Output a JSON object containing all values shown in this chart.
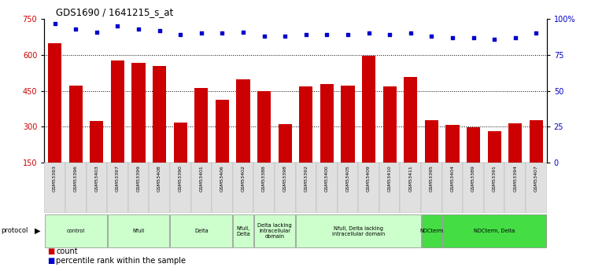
{
  "title": "GDS1690 / 1641215_s_at",
  "samples": [
    "GSM53393",
    "GSM53396",
    "GSM53403",
    "GSM53397",
    "GSM53399",
    "GSM53408",
    "GSM53390",
    "GSM53401",
    "GSM53406",
    "GSM53402",
    "GSM53388",
    "GSM53398",
    "GSM53392",
    "GSM53400",
    "GSM53405",
    "GSM53409",
    "GSM53410",
    "GSM53411",
    "GSM53395",
    "GSM53404",
    "GSM53389",
    "GSM53391",
    "GSM53394",
    "GSM53407"
  ],
  "counts": [
    648,
    472,
    323,
    578,
    567,
    552,
    318,
    462,
    413,
    498,
    448,
    312,
    468,
    478,
    472,
    597,
    467,
    508,
    328,
    308,
    298,
    282,
    313,
    328
  ],
  "percentiles": [
    97,
    93,
    91,
    95,
    93,
    92,
    89,
    90,
    90,
    91,
    88,
    88,
    89,
    89,
    89,
    90,
    89,
    90,
    88,
    87,
    87,
    86,
    87,
    90
  ],
  "bar_color": "#cc0000",
  "dot_color": "#0000cc",
  "ylim_left": [
    150,
    750
  ],
  "ylim_right": [
    0,
    100
  ],
  "yticks_left": [
    150,
    300,
    450,
    600,
    750
  ],
  "yticks_right": [
    0,
    25,
    50,
    75,
    100
  ],
  "grid_lines": [
    300,
    450,
    600
  ],
  "protocol_groups": [
    {
      "label": "control",
      "start": 0,
      "end": 2,
      "color": "#ccffcc"
    },
    {
      "label": "Nfull",
      "start": 3,
      "end": 5,
      "color": "#ccffcc"
    },
    {
      "label": "Delta",
      "start": 6,
      "end": 8,
      "color": "#ccffcc"
    },
    {
      "label": "Nfull,\nDelta",
      "start": 9,
      "end": 9,
      "color": "#ccffcc"
    },
    {
      "label": "Delta lacking\nintracellular\ndomain",
      "start": 10,
      "end": 11,
      "color": "#ccffcc"
    },
    {
      "label": "Nfull, Delta lacking\nintracellular domain",
      "start": 12,
      "end": 17,
      "color": "#ccffcc"
    },
    {
      "label": "NDCterm",
      "start": 18,
      "end": 18,
      "color": "#44dd44"
    },
    {
      "label": "NDCterm, Delta",
      "start": 19,
      "end": 23,
      "color": "#44dd44"
    }
  ],
  "bg_color": "#ffffff",
  "plot_bg": "#ffffff",
  "tick_label_color_left": "#cc0000",
  "tick_label_color_right": "#0000cc"
}
